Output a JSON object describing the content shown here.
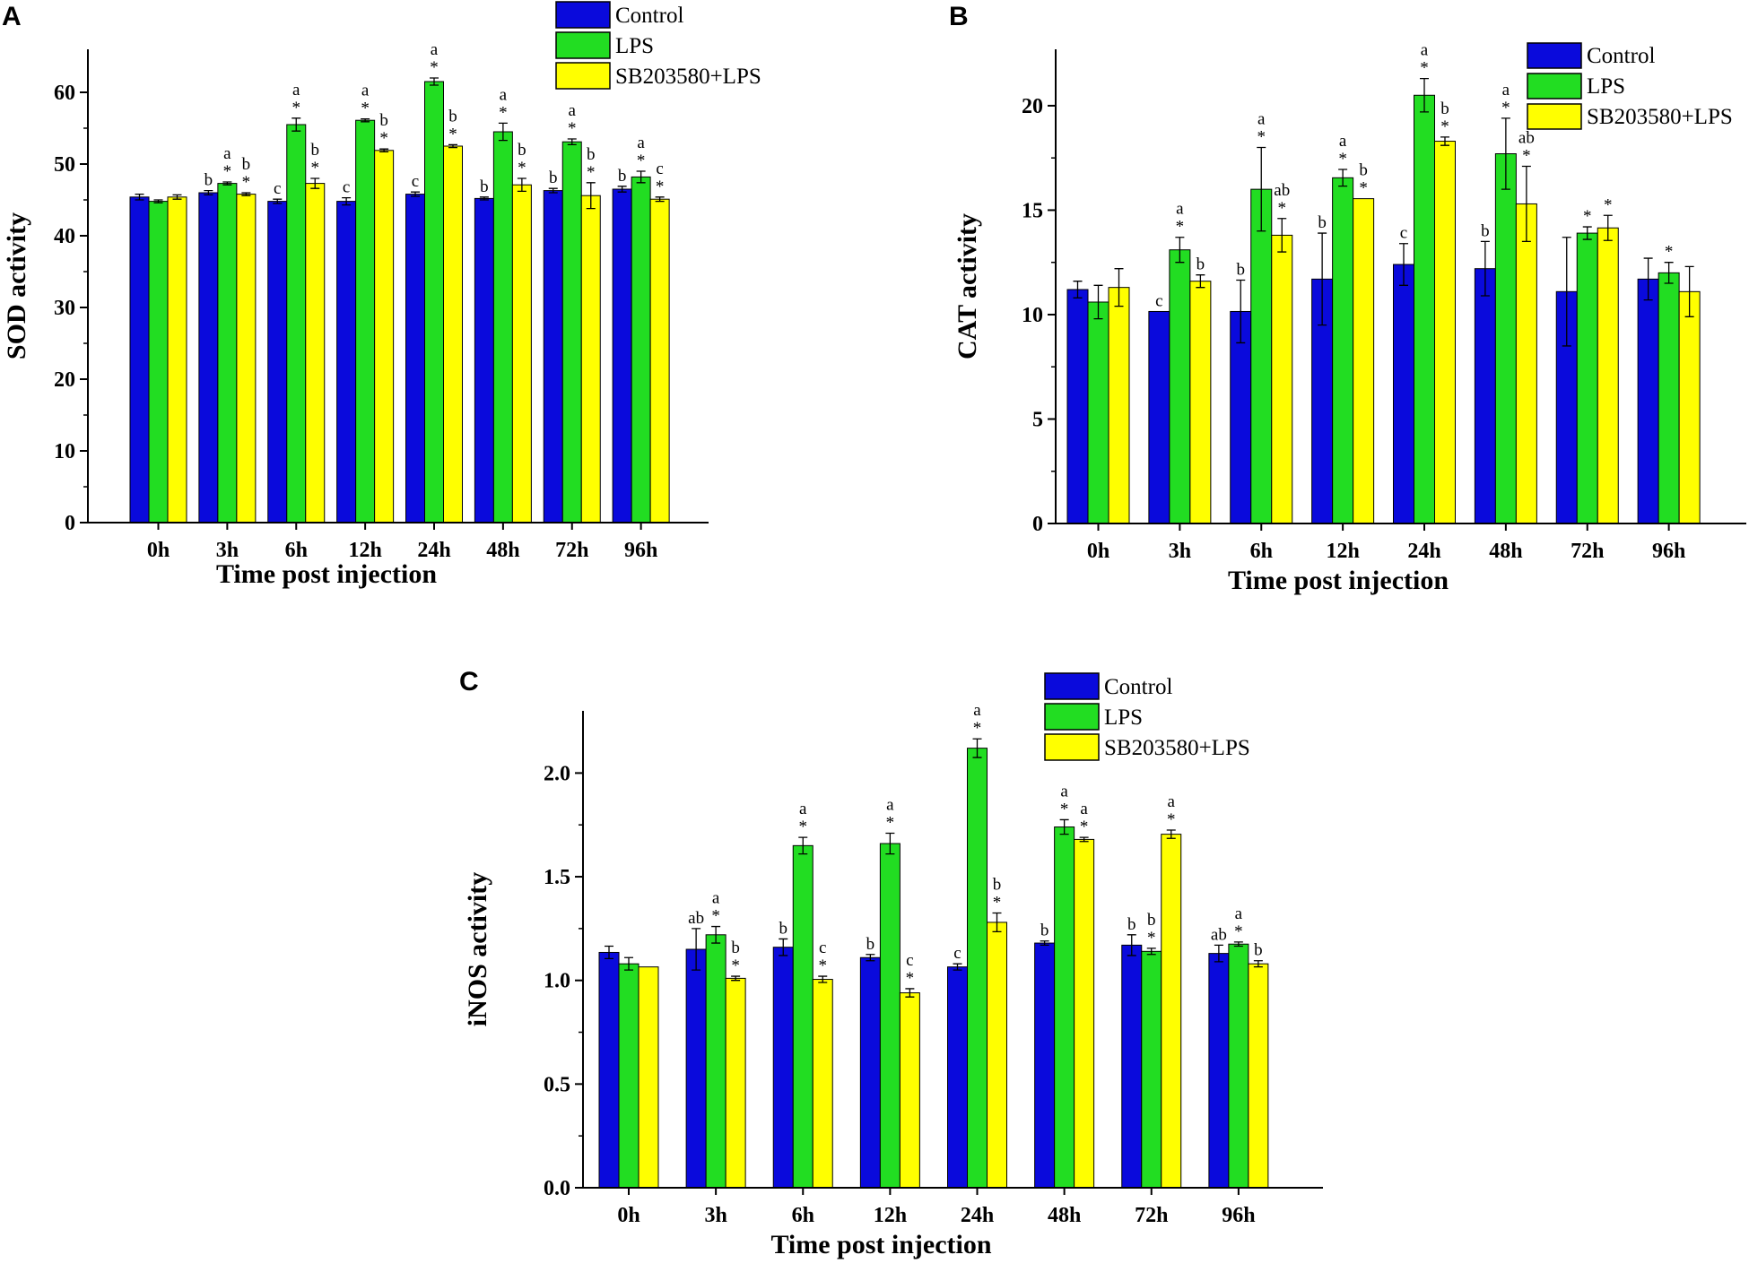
{
  "colors": {
    "Control": "#0a0adc",
    "LPS": "#22dd22",
    "SB203580+LPS": "#ffff00",
    "axis": "#000000"
  },
  "chart_data": [
    {
      "panel": "A",
      "type": "bar",
      "categories": [
        "0h",
        "3h",
        "6h",
        "12h",
        "24h",
        "48h",
        "72h",
        "96h"
      ],
      "xlabel": "Time post injection",
      "ylabel": "SOD activity",
      "ylim": [
        0,
        66
      ],
      "yticks": [
        0,
        10,
        20,
        30,
        40,
        50,
        60
      ],
      "ytick_labels": [
        "0",
        "10",
        "20",
        "30",
        "40",
        "50",
        "60"
      ],
      "legend": [
        "Control",
        "LPS",
        "SB203580+LPS"
      ],
      "legend_position": "top-center",
      "series": [
        {
          "name": "Control",
          "values": [
            45.4,
            46.0,
            44.8,
            44.8,
            45.8,
            45.2,
            46.3,
            46.5
          ],
          "errors": [
            0.4,
            0.3,
            0.3,
            0.5,
            0.3,
            0.2,
            0.3,
            0.4
          ],
          "annotations": [
            "",
            "b",
            "c",
            "c",
            "c",
            "b",
            "b",
            "b"
          ]
        },
        {
          "name": "LPS",
          "values": [
            44.8,
            47.3,
            55.5,
            56.1,
            61.5,
            54.5,
            53.1,
            48.2
          ],
          "errors": [
            0.2,
            0.2,
            0.9,
            0.2,
            0.5,
            1.2,
            0.4,
            0.8
          ],
          "annotations": [
            "",
            "a\n*",
            "a\n*",
            "a\n*",
            "a\n*",
            "a\n*",
            "a\n*",
            "a\n*"
          ]
        },
        {
          "name": "SB203580+LPS",
          "values": [
            45.4,
            45.8,
            47.3,
            51.9,
            52.5,
            47.1,
            45.6,
            45.1
          ],
          "errors": [
            0.3,
            0.2,
            0.7,
            0.2,
            0.2,
            0.9,
            1.8,
            0.3
          ],
          "annotations": [
            "",
            "b\n*",
            "b\n*",
            "b\n*",
            "b\n*",
            "b\n*",
            "b\n*",
            "c\n*"
          ]
        }
      ]
    },
    {
      "panel": "B",
      "type": "bar",
      "categories": [
        "0h",
        "3h",
        "6h",
        "12h",
        "24h",
        "48h",
        "72h",
        "96h"
      ],
      "xlabel": "Time post injection",
      "ylabel": "CAT activity",
      "ylim": [
        0,
        22.7
      ],
      "yticks": [
        0,
        5,
        10,
        15,
        20
      ],
      "ytick_labels": [
        "0",
        "5",
        "10",
        "15",
        "20"
      ],
      "legend": [
        "Control",
        "LPS",
        "SB203580+LPS"
      ],
      "legend_position": "top-right",
      "series": [
        {
          "name": "Control",
          "values": [
            11.2,
            10.15,
            10.15,
            11.7,
            12.4,
            12.2,
            11.1,
            11.7
          ],
          "errors": [
            0.4,
            0.0,
            1.5,
            2.2,
            1.0,
            1.3,
            2.6,
            1.0
          ],
          "annotations": [
            "",
            "c",
            "b",
            "b",
            "c",
            "b",
            "",
            ""
          ]
        },
        {
          "name": "LPS",
          "values": [
            10.6,
            13.1,
            16.0,
            16.55,
            20.5,
            17.7,
            13.9,
            12.0
          ],
          "errors": [
            0.8,
            0.6,
            2.0,
            0.4,
            0.8,
            1.7,
            0.3,
            0.5
          ],
          "annotations": [
            "",
            "a\n*",
            "a\n*",
            "a\n*",
            "a\n*",
            "a\n*",
            "*",
            "*"
          ]
        },
        {
          "name": "SB203580+LPS",
          "values": [
            11.3,
            11.6,
            13.8,
            15.55,
            18.3,
            15.3,
            14.15,
            11.1
          ],
          "errors": [
            0.9,
            0.3,
            0.8,
            0.0,
            0.2,
            1.8,
            0.6,
            1.2
          ],
          "annotations": [
            "",
            "b",
            "ab\n*",
            "b\n*",
            "b\n*",
            "ab\n*",
            "*",
            ""
          ]
        }
      ]
    },
    {
      "panel": "C",
      "type": "bar",
      "categories": [
        "0h",
        "3h",
        "6h",
        "12h",
        "24h",
        "48h",
        "72h",
        "96h"
      ],
      "xlabel": "Time post injection",
      "ylabel": "iNOS activity",
      "ylim": [
        0,
        2.3
      ],
      "yticks": [
        0,
        0.5,
        1.0,
        1.5,
        2.0
      ],
      "ytick_labels": [
        "0.0",
        "0.5",
        "1.0",
        "1.5",
        "2.0"
      ],
      "legend": [
        "Control",
        "LPS",
        "SB203580+LPS"
      ],
      "legend_position": "top-right",
      "series": [
        {
          "name": "Control",
          "values": [
            1.135,
            1.15,
            1.16,
            1.11,
            1.065,
            1.18,
            1.17,
            1.13
          ],
          "errors": [
            0.03,
            0.1,
            0.04,
            0.015,
            0.015,
            0.01,
            0.05,
            0.04
          ],
          "annotations": [
            "",
            "ab",
            "b",
            "b",
            "c",
            "b",
            "b",
            "ab"
          ]
        },
        {
          "name": "LPS",
          "values": [
            1.08,
            1.22,
            1.65,
            1.66,
            2.12,
            1.74,
            1.14,
            1.175
          ],
          "errors": [
            0.03,
            0.04,
            0.04,
            0.05,
            0.045,
            0.035,
            0.015,
            0.01
          ],
          "annotations": [
            "",
            "a\n*",
            "a\n*",
            "a\n*",
            "a\n*",
            "a\n*",
            "b\n*",
            "a\n*"
          ]
        },
        {
          "name": "SB203580+LPS",
          "values": [
            1.065,
            1.01,
            1.005,
            0.94,
            1.28,
            1.68,
            1.705,
            1.08
          ],
          "errors": [
            0.0,
            0.01,
            0.015,
            0.02,
            0.045,
            0.01,
            0.02,
            0.015
          ],
          "annotations": [
            "",
            "b\n*",
            "c\n*",
            "c\n*",
            "b\n*",
            "a\n*",
            "a\n*",
            "b"
          ]
        }
      ]
    }
  ]
}
